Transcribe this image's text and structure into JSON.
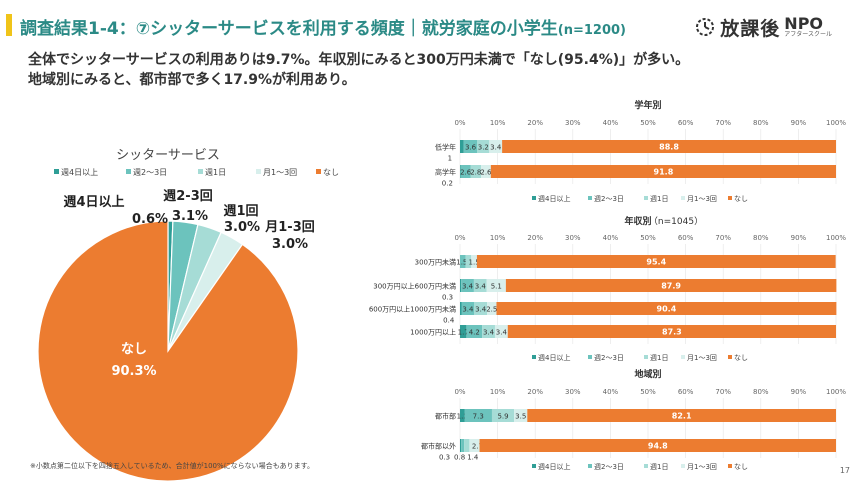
{
  "header": {
    "title_main": "調査結果1-4：⑦シッターサービスを利用する頻度｜就労家庭の小学生",
    "title_n": "(n=1200)",
    "logo_text": "放課後",
    "logo_npo": "NPO",
    "logo_sub": "アフタースクール"
  },
  "lead": {
    "line1": "全体でシッターサービスの利用ありは9.7%。年収別にみると300万円未満で「なし(95.4%)」が多い。",
    "line2": "地域別にみると、都市部で多く17.9%が利用あり。"
  },
  "footnote": "※小数点第二位以下を四捨五入しているため、合計値が100%にならない場合もあります。",
  "page_number": "17",
  "colors": {
    "week4": "#2f9e96",
    "week23": "#6cc3bd",
    "week1": "#a6dcd6",
    "month13": "#d8efec",
    "none": "#ec7c30"
  },
  "chart_data": [
    {
      "type": "pie",
      "title": "シッターサービス",
      "legend": [
        "週4日以上",
        "週2〜3日",
        "週1日",
        "月1〜3回",
        "なし"
      ],
      "slices": [
        {
          "name": "週4日以上",
          "label": "週4日以上",
          "value": 0.6,
          "value_label": "0.6%"
        },
        {
          "name": "週2〜3日",
          "label": "週2-3回",
          "value": 3.1,
          "value_label": "3.1%"
        },
        {
          "name": "週1日",
          "label": "週1回",
          "value": 3.0,
          "value_label": "3.0%"
        },
        {
          "name": "月1〜3回",
          "label": "月1-3回",
          "value": 3.0,
          "value_label": "3.0%"
        },
        {
          "name": "なし",
          "label": "なし",
          "value": 90.3,
          "value_label": "90.3%"
        }
      ]
    },
    {
      "type": "bar",
      "stacked": "horizontal-100%",
      "title": "学年別",
      "axis_ticks": [
        "0%",
        "10%",
        "20%",
        "30%",
        "40%",
        "50%",
        "60%",
        "70%",
        "80%",
        "90%",
        "100%"
      ],
      "legend": [
        "週4日以上",
        "週2〜3日",
        "週1日",
        "月1〜3回",
        "なし"
      ],
      "categories": [
        "低学年",
        "高学年"
      ],
      "series": [
        {
          "name": "週4日以上",
          "values": [
            1.0,
            0.2
          ]
        },
        {
          "name": "週2〜3日",
          "values": [
            3.6,
            2.6
          ]
        },
        {
          "name": "週1日",
          "values": [
            3.2,
            2.8
          ]
        },
        {
          "name": "月1〜3回",
          "values": [
            3.4,
            2.6
          ]
        },
        {
          "name": "なし",
          "values": [
            88.8,
            91.8
          ]
        }
      ]
    },
    {
      "type": "bar",
      "stacked": "horizontal-100%",
      "title": "年収別",
      "title_n": "（n=1045）",
      "axis_ticks": [
        "0%",
        "10%",
        "20%",
        "30%",
        "40%",
        "50%",
        "60%",
        "70%",
        "80%",
        "90%",
        "100%"
      ],
      "legend": [
        "週4日以上",
        "週2〜3日",
        "週1日",
        "月1〜3回",
        "なし"
      ],
      "categories": [
        "300万円未満",
        "300万円以上600万円未満",
        "600万円以上1000万円未満",
        "1000万円以上"
      ],
      "series": [
        {
          "name": "週4日以上",
          "values": [
            0.0,
            0.3,
            0.4,
            1.7
          ]
        },
        {
          "name": "週2〜3日",
          "values": [
            1.5,
            3.4,
            3.4,
            4.2
          ]
        },
        {
          "name": "週1日",
          "values": [
            1.5,
            3.4,
            3.4,
            3.4
          ]
        },
        {
          "name": "月1〜3回",
          "values": [
            1.5,
            5.1,
            2.5,
            3.4
          ]
        },
        {
          "name": "なし",
          "values": [
            95.4,
            87.9,
            90.4,
            87.3
          ]
        }
      ]
    },
    {
      "type": "bar",
      "stacked": "horizontal-100%",
      "title": "地域別",
      "axis_ticks": [
        "0%",
        "10%",
        "20%",
        "30%",
        "40%",
        "50%",
        "60%",
        "70%",
        "80%",
        "90%",
        "100%"
      ],
      "legend": [
        "週4日以上",
        "週2〜3日",
        "週1日",
        "月1〜3回",
        "なし"
      ],
      "categories": [
        "都市部",
        "都市部以外"
      ],
      "series": [
        {
          "name": "週4日以上",
          "values": [
            1.2,
            0.3
          ]
        },
        {
          "name": "週2〜3日",
          "values": [
            7.3,
            0.8
          ]
        },
        {
          "name": "週1日",
          "values": [
            5.9,
            1.4
          ]
        },
        {
          "name": "月1〜3回",
          "values": [
            3.5,
            2.7
          ]
        },
        {
          "name": "なし",
          "values": [
            82.1,
            94.8
          ]
        }
      ]
    }
  ]
}
